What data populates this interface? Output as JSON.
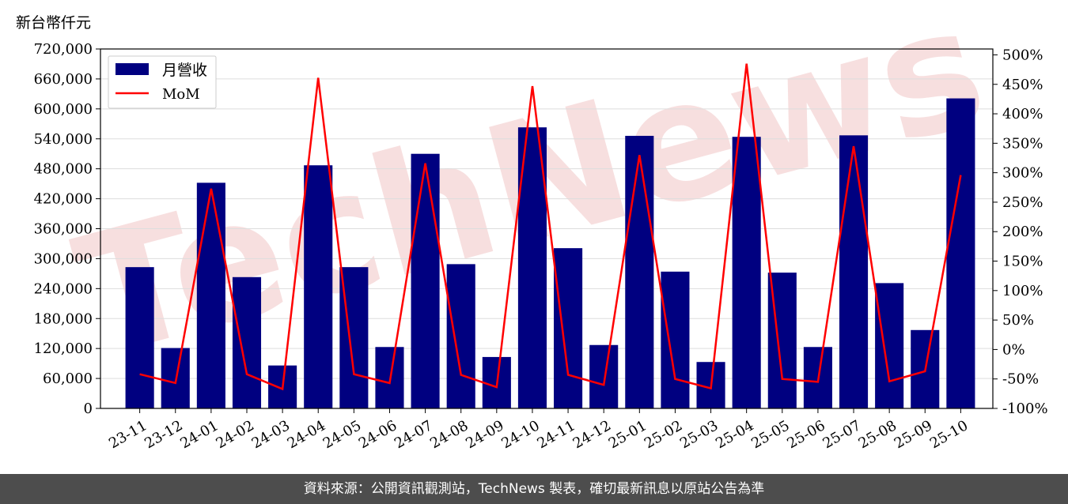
{
  "unit_label": "新台幣仟元",
  "footer_text": "資料來源：公開資訊觀測站，TechNews 製表，確切最新訊息以原站公告為準",
  "watermark": "TechNews",
  "colors": {
    "bar": "#000080",
    "line": "#ff0000",
    "watermark": "#f5d5d5"
  },
  "chart_data": {
    "type": "bar",
    "categories": [
      "23-11",
      "23-12",
      "24-01",
      "24-02",
      "24-03",
      "24-04",
      "24-05",
      "24-06",
      "24-07",
      "24-08",
      "24-09",
      "24-10",
      "24-11",
      "24-12",
      "25-01",
      "25-02",
      "25-03",
      "25-04",
      "25-05",
      "25-06",
      "25-07",
      "25-08",
      "25-09",
      "25-10"
    ],
    "series": [
      {
        "name": "月營收",
        "type": "bar",
        "axis": "left",
        "values": [
          283000,
          121000,
          452000,
          263000,
          86000,
          487000,
          283000,
          123000,
          510000,
          289000,
          103000,
          563000,
          321000,
          127000,
          546000,
          274000,
          93000,
          544000,
          272000,
          123000,
          547000,
          251000,
          157000,
          621000
        ]
      },
      {
        "name": "MoM",
        "type": "line",
        "axis": "right",
        "values": [
          -0.42,
          -0.57,
          2.73,
          -0.42,
          -0.67,
          4.61,
          -0.42,
          -0.57,
          3.16,
          -0.43,
          -0.64,
          4.47,
          -0.43,
          -0.6,
          3.3,
          -0.5,
          -0.66,
          4.85,
          -0.5,
          -0.55,
          3.45,
          -0.54,
          -0.37,
          2.96
        ]
      }
    ],
    "y_left": {
      "lim": [
        0,
        720000
      ],
      "ticks": [
        0,
        60000,
        120000,
        180000,
        240000,
        300000,
        360000,
        420000,
        480000,
        540000,
        600000,
        660000,
        720000
      ],
      "tick_labels": [
        "0",
        "60,000",
        "120,000",
        "180,000",
        "240,000",
        "300,000",
        "360,000",
        "420,000",
        "480,000",
        "540,000",
        "600,000",
        "660,000",
        "720,000"
      ]
    },
    "y_right": {
      "lim": [
        -1.0,
        5.1
      ],
      "ticks": [
        -1.0,
        -0.5,
        0,
        0.5,
        1.0,
        1.5,
        2.0,
        2.5,
        3.0,
        3.5,
        4.0,
        4.5,
        5.0
      ],
      "tick_labels": [
        "-100%",
        "-50%",
        "0%",
        "50%",
        "100%",
        "150%",
        "200%",
        "250%",
        "300%",
        "350%",
        "400%",
        "450%",
        "500%"
      ]
    },
    "grid": "horizontal",
    "legend": "top-left"
  }
}
